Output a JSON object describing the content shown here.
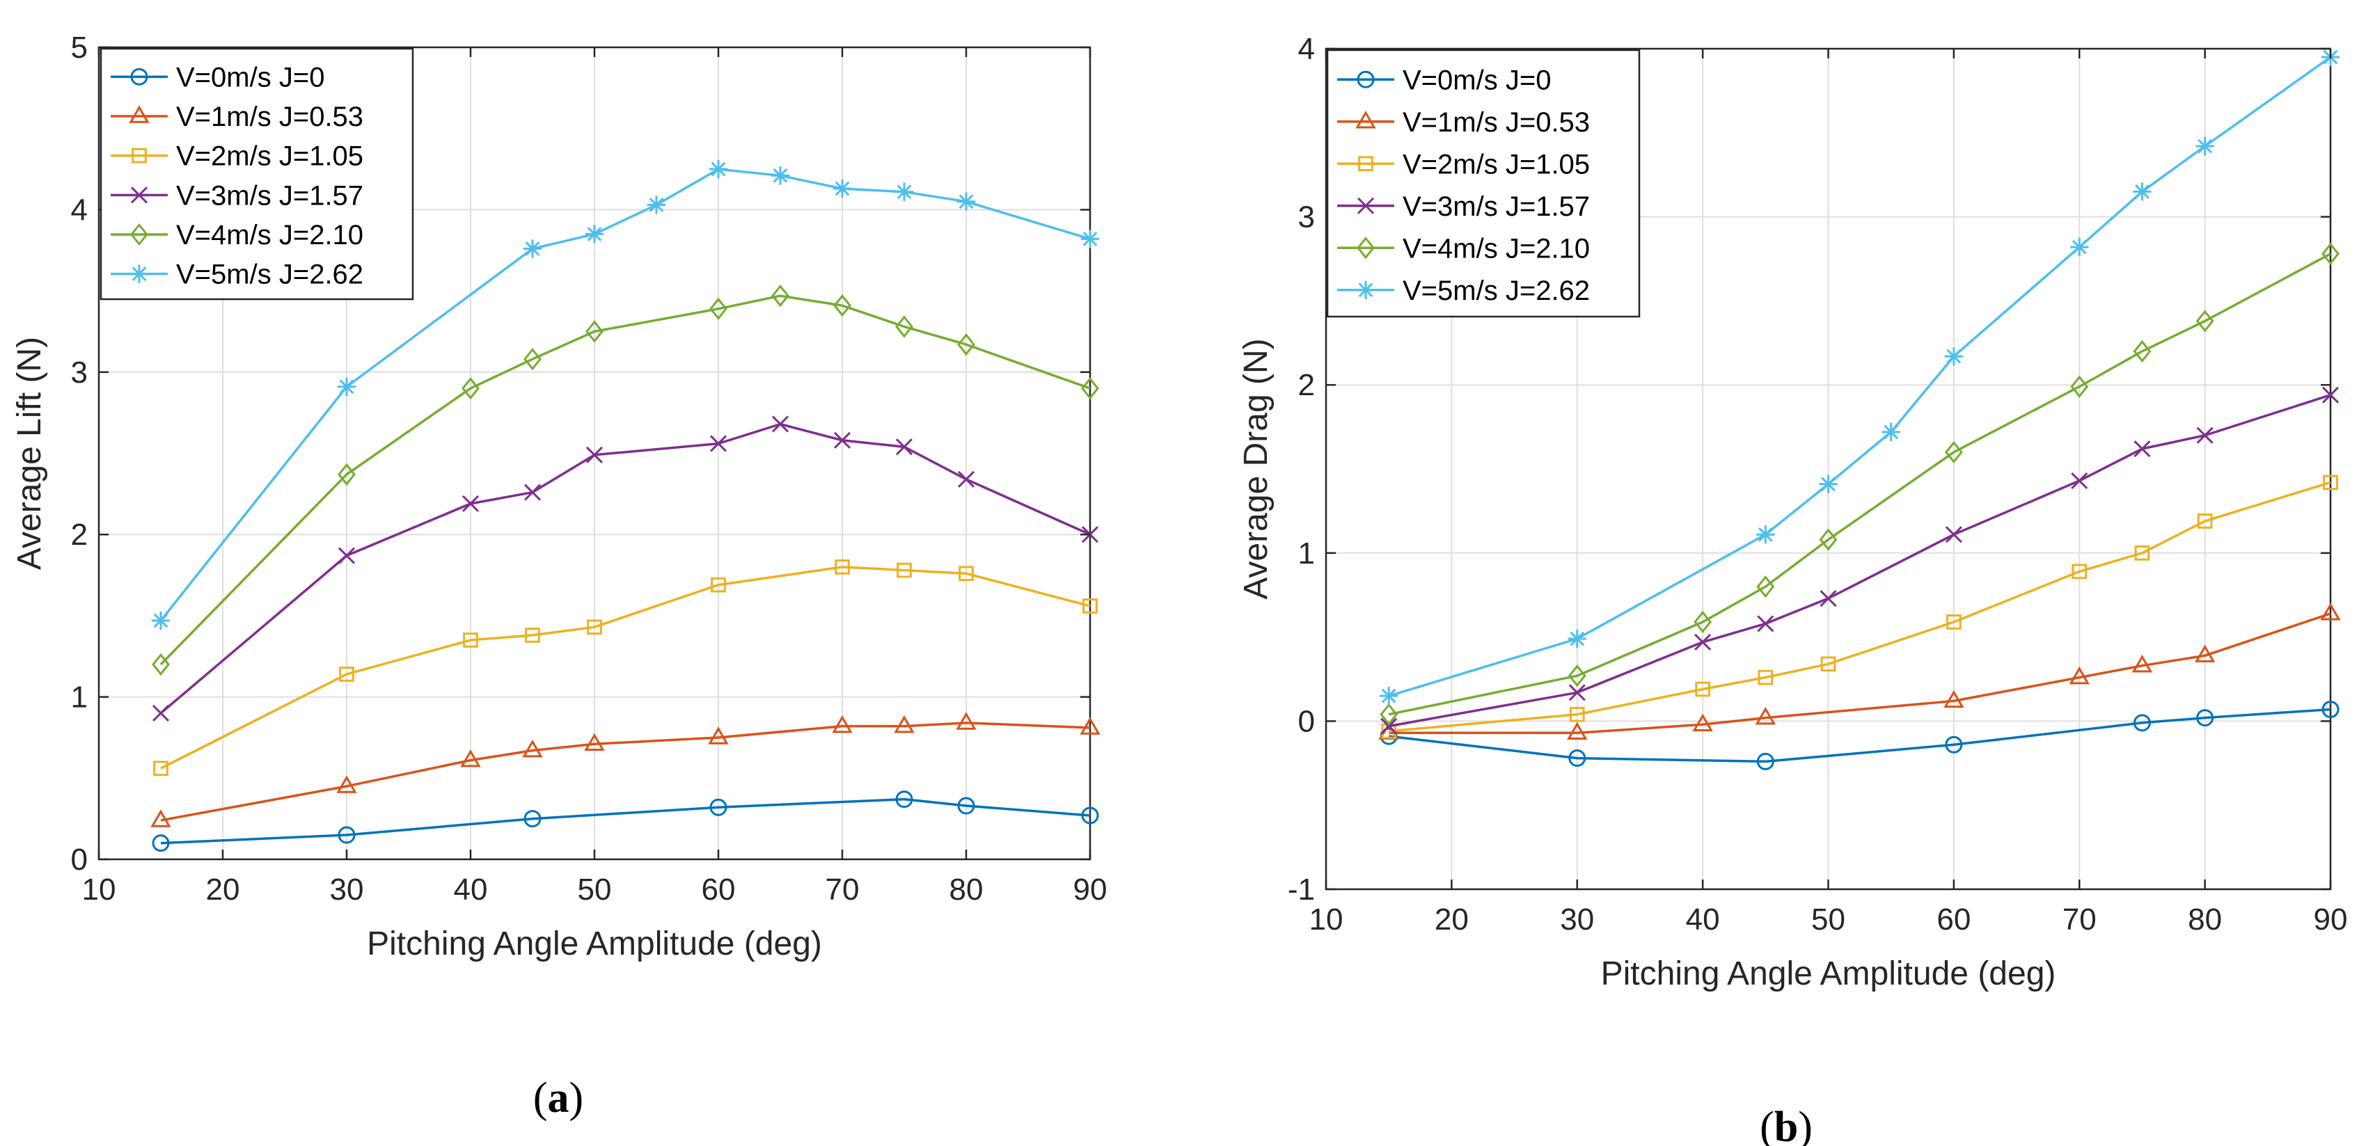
{
  "colors": {
    "series": [
      "#0072BD",
      "#D95319",
      "#EDB120",
      "#7E2F8E",
      "#77AC30",
      "#4DBEEE"
    ],
    "grid": "#dfdfdf",
    "axis": "#262626"
  },
  "chart_data": [
    {
      "id": "a",
      "type": "line",
      "caption": {
        "open": "(",
        "letter": "a",
        "close": ")"
      },
      "title": "",
      "xlabel": "Pitching Angle Amplitude (deg)",
      "ylabel": "Average Lift (N)",
      "xlim": [
        10,
        90
      ],
      "ylim": [
        0,
        5
      ],
      "xticks": [
        10,
        20,
        30,
        40,
        50,
        60,
        70,
        80,
        90
      ],
      "yticks": [
        0,
        1,
        2,
        3,
        4,
        5
      ],
      "grid": true,
      "legend_position": "top-left",
      "series": [
        {
          "name": "V=0m/s  J=0",
          "marker": "circle",
          "x": [
            15,
            30,
            45,
            60,
            75,
            80,
            90
          ],
          "y": [
            0.1,
            0.15,
            0.25,
            0.32,
            0.37,
            0.33,
            0.27
          ]
        },
        {
          "name": "V=1m/s  J=0.53",
          "marker": "triangle",
          "x": [
            15,
            30,
            40,
            45,
            50,
            60,
            70,
            75,
            80,
            90
          ],
          "y": [
            0.24,
            0.45,
            0.61,
            0.67,
            0.71,
            0.75,
            0.82,
            0.82,
            0.84,
            0.81
          ]
        },
        {
          "name": "V=2m/s  J=1.05",
          "marker": "square",
          "x": [
            15,
            30,
            40,
            45,
            50,
            60,
            70,
            75,
            80,
            90
          ],
          "y": [
            0.56,
            1.14,
            1.35,
            1.38,
            1.43,
            1.69,
            1.8,
            1.78,
            1.76,
            1.56
          ]
        },
        {
          "name": "V=3m/s  J=1.57",
          "marker": "x",
          "x": [
            15,
            30,
            40,
            45,
            50,
            60,
            65,
            70,
            75,
            80,
            90
          ],
          "y": [
            0.9,
            1.87,
            2.19,
            2.26,
            2.49,
            2.56,
            2.68,
            2.58,
            2.54,
            2.34,
            2.0
          ]
        },
        {
          "name": "V=4m/s  J=2.10",
          "marker": "diamond",
          "x": [
            15,
            30,
            40,
            45,
            50,
            60,
            65,
            70,
            75,
            80,
            90
          ],
          "y": [
            1.2,
            2.37,
            2.9,
            3.08,
            3.25,
            3.39,
            3.47,
            3.41,
            3.28,
            3.17,
            2.9
          ]
        },
        {
          "name": "V=5m/s  J=2.62",
          "marker": "star",
          "x": [
            15,
            30,
            45,
            50,
            55,
            60,
            65,
            70,
            75,
            80,
            90
          ],
          "y": [
            1.47,
            2.91,
            3.76,
            3.85,
            4.03,
            4.25,
            4.21,
            4.13,
            4.11,
            4.05,
            3.82
          ]
        }
      ]
    },
    {
      "id": "b",
      "type": "line",
      "caption": {
        "open": "(",
        "letter": "b",
        "close": ")"
      },
      "title": "",
      "xlabel": "Pitching Angle Amplitude (deg)",
      "ylabel": "Average Drag (N)",
      "xlim": [
        10,
        90
      ],
      "ylim": [
        -1,
        4
      ],
      "xticks": [
        10,
        20,
        30,
        40,
        50,
        60,
        70,
        80,
        90
      ],
      "yticks": [
        -1,
        0,
        1,
        2,
        3,
        4
      ],
      "grid": true,
      "legend_position": "top-left",
      "series": [
        {
          "name": "V=0m/s  J=0",
          "marker": "circle",
          "x": [
            15,
            30,
            45,
            60,
            75,
            80,
            90
          ],
          "y": [
            -0.09,
            -0.22,
            -0.24,
            -0.14,
            -0.01,
            0.02,
            0.07
          ]
        },
        {
          "name": "V=1m/s  J=0.53",
          "marker": "triangle",
          "x": [
            15,
            30,
            40,
            45,
            60,
            70,
            75,
            80,
            90
          ],
          "y": [
            -0.07,
            -0.07,
            -0.02,
            0.02,
            0.12,
            0.26,
            0.33,
            0.39,
            0.64
          ]
        },
        {
          "name": "V=2m/s  J=1.05",
          "marker": "square",
          "x": [
            15,
            30,
            40,
            45,
            50,
            60,
            70,
            75,
            80,
            90
          ],
          "y": [
            -0.06,
            0.04,
            0.19,
            0.26,
            0.34,
            0.59,
            0.89,
            1.0,
            1.19,
            1.42
          ]
        },
        {
          "name": "V=3m/s  J=1.57",
          "marker": "x",
          "x": [
            15,
            30,
            40,
            45,
            50,
            60,
            70,
            75,
            80,
            90
          ],
          "y": [
            -0.03,
            0.17,
            0.47,
            0.58,
            0.73,
            1.11,
            1.43,
            1.62,
            1.7,
            1.94
          ]
        },
        {
          "name": "V=4m/s  J=2.10",
          "marker": "diamond",
          "x": [
            15,
            30,
            40,
            45,
            50,
            60,
            70,
            75,
            80,
            90
          ],
          "y": [
            0.04,
            0.27,
            0.59,
            0.8,
            1.08,
            1.6,
            1.99,
            2.2,
            2.38,
            2.78
          ]
        },
        {
          "name": "V=5m/s  J=2.62",
          "marker": "star",
          "x": [
            15,
            30,
            45,
            50,
            55,
            60,
            70,
            75,
            80,
            90
          ],
          "y": [
            0.15,
            0.49,
            1.11,
            1.41,
            1.72,
            2.17,
            2.82,
            3.15,
            3.42,
            3.95
          ]
        }
      ]
    }
  ]
}
